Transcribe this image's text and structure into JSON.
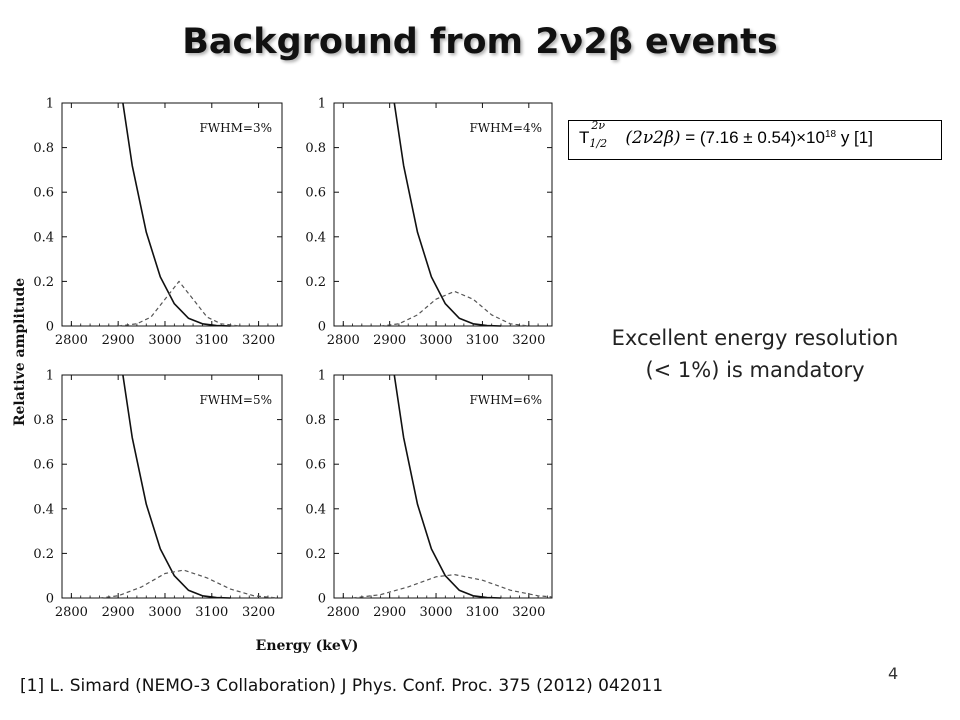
{
  "slide": {
    "title": "Background from 2ν2β events",
    "half_life": {
      "symbol": "T",
      "superscript": "2ν",
      "subscript": "1/2",
      "argument": "(2ν2β)",
      "equals": "= (7.16 ± 0.54)×10",
      "exponent": "18",
      "unit": "y [1]"
    },
    "note_lines": [
      "Excellent energy resolution",
      "(< 1%) is mandatory"
    ],
    "reference": "[1] L. Simard (NEMO-3 Collaboration) J Phys. Conf. Proc. 375 (2012) 042011",
    "slide_number": "4"
  },
  "chart_data": {
    "type": "line",
    "xlabel": "Energy (keV)",
    "ylabel": "Relative amplitude",
    "xlim": [
      2780,
      3250
    ],
    "ylim": [
      0,
      1
    ],
    "x_ticks": [
      "2800",
      "2900",
      "3000",
      "3100",
      "3200"
    ],
    "y_ticks": [
      "0",
      "0.2",
      "0.4",
      "0.6",
      "0.8",
      "1"
    ],
    "panels": [
      {
        "label": "FWHM=3%",
        "series": [
          {
            "style": "solid",
            "x": [
              2910,
              2930,
              2960,
              2990,
              3020,
              3050,
              3080,
              3110,
              3140
            ],
            "y": [
              1.0,
              0.72,
              0.42,
              0.22,
              0.1,
              0.035,
              0.01,
              0.002,
              0.0
            ]
          },
          {
            "style": "dashed",
            "x": [
              2900,
              2940,
              2970,
              3000,
              3030,
              3060,
              3090,
              3120,
              3160
            ],
            "y": [
              0.0,
              0.01,
              0.04,
              0.12,
              0.2,
              0.12,
              0.04,
              0.01,
              0.0
            ]
          }
        ]
      },
      {
        "label": "FWHM=4%",
        "series": [
          {
            "style": "solid",
            "x": [
              2910,
              2930,
              2960,
              2990,
              3020,
              3050,
              3080,
              3110,
              3140
            ],
            "y": [
              1.0,
              0.72,
              0.42,
              0.22,
              0.1,
              0.035,
              0.01,
              0.002,
              0.0
            ]
          },
          {
            "style": "dashed",
            "x": [
              2880,
              2920,
              2960,
              3000,
              3040,
              3080,
              3120,
              3160,
              3200
            ],
            "y": [
              0.0,
              0.01,
              0.05,
              0.12,
              0.155,
              0.12,
              0.05,
              0.01,
              0.0
            ]
          }
        ]
      },
      {
        "label": "FWHM=5%",
        "series": [
          {
            "style": "solid",
            "x": [
              2910,
              2930,
              2960,
              2990,
              3020,
              3050,
              3080,
              3110,
              3140
            ],
            "y": [
              1.0,
              0.72,
              0.42,
              0.22,
              0.1,
              0.035,
              0.01,
              0.002,
              0.0
            ]
          },
          {
            "style": "dashed",
            "x": [
              2860,
              2900,
              2950,
              3000,
              3040,
              3090,
              3140,
              3190,
              3240
            ],
            "y": [
              0.0,
              0.01,
              0.05,
              0.11,
              0.125,
              0.09,
              0.04,
              0.01,
              0.0
            ]
          }
        ]
      },
      {
        "label": "FWHM=6%",
        "series": [
          {
            "style": "solid",
            "x": [
              2910,
              2930,
              2960,
              2990,
              3020,
              3050,
              3080,
              3110,
              3140
            ],
            "y": [
              1.0,
              0.72,
              0.42,
              0.22,
              0.1,
              0.035,
              0.01,
              0.002,
              0.0
            ]
          },
          {
            "style": "dashed",
            "x": [
              2820,
              2880,
              2940,
              3000,
              3040,
              3100,
              3160,
              3220,
              3250
            ],
            "y": [
              0.0,
              0.015,
              0.05,
              0.095,
              0.105,
              0.08,
              0.035,
              0.01,
              0.005
            ]
          }
        ]
      }
    ]
  }
}
